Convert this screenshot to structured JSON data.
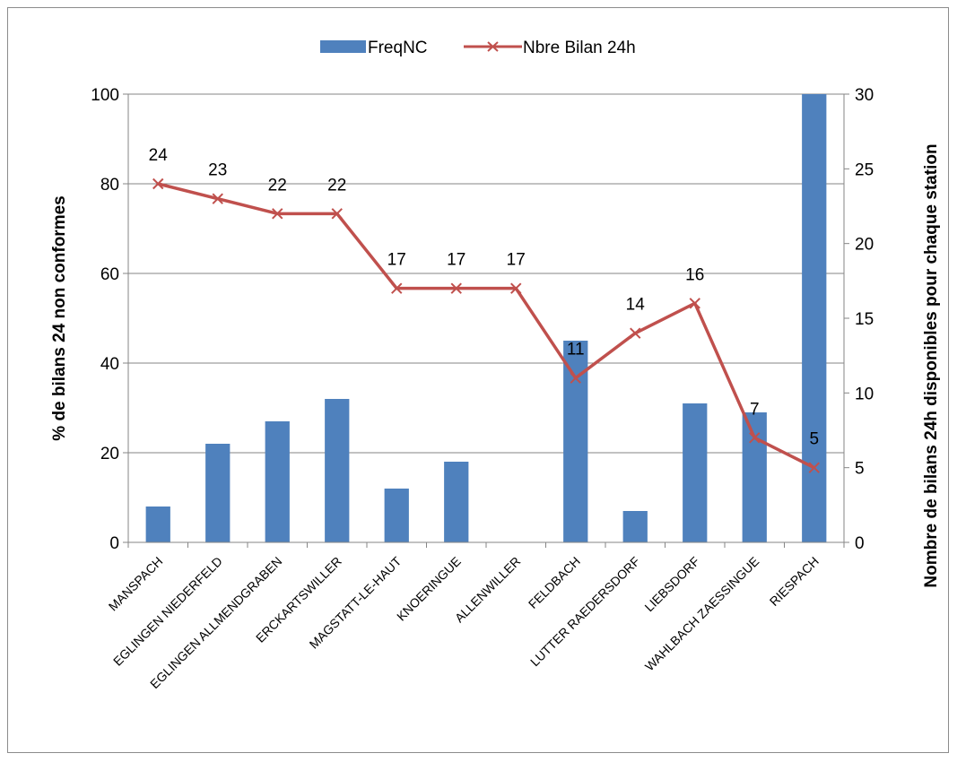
{
  "chart_data": {
    "type": "bar",
    "categories": [
      "MANSPACH",
      "EGLINGEN NIEDERFELD",
      "EGLINGEN ALLMENDGRABEN",
      "ERCKARTSWILLER",
      "MAGSTATT-LE-HAUT",
      "KNOERINGUE",
      "ALLENWILLER",
      "FELDBACH",
      "LUTTER RAEDERSDORF",
      "LIEBSDORF",
      "WAHLBACH ZAESSINGUE",
      "RIESPACH"
    ],
    "series": [
      {
        "name": "FreqNC",
        "type": "bar",
        "axis": "left",
        "color": "#4f81bd",
        "values": [
          8,
          22,
          27,
          32,
          12,
          18,
          0,
          45,
          7,
          31,
          29,
          100
        ]
      },
      {
        "name": "Nbre Bilan 24h",
        "type": "line",
        "axis": "right",
        "color": "#c0504d",
        "marker": "x",
        "values": [
          24,
          23,
          22,
          22,
          17,
          17,
          17,
          11,
          14,
          16,
          7,
          5
        ],
        "data_labels": [
          "24",
          "23",
          "22",
          "22",
          "17",
          "17",
          "17",
          "11",
          "14",
          "16",
          "7",
          "5"
        ]
      }
    ],
    "ylabel": "% de bilans 24 non conformes",
    "y2label": "Nombre de bilans 24h disponibles pour chaque station",
    "ylim": [
      0,
      100
    ],
    "y2lim": [
      0,
      30
    ],
    "yticks": [
      "0",
      "20",
      "40",
      "60",
      "80",
      "100"
    ],
    "y2ticks": [
      "0",
      "5",
      "10",
      "15",
      "20",
      "25",
      "30"
    ],
    "grid": true,
    "legend_position": "top"
  }
}
